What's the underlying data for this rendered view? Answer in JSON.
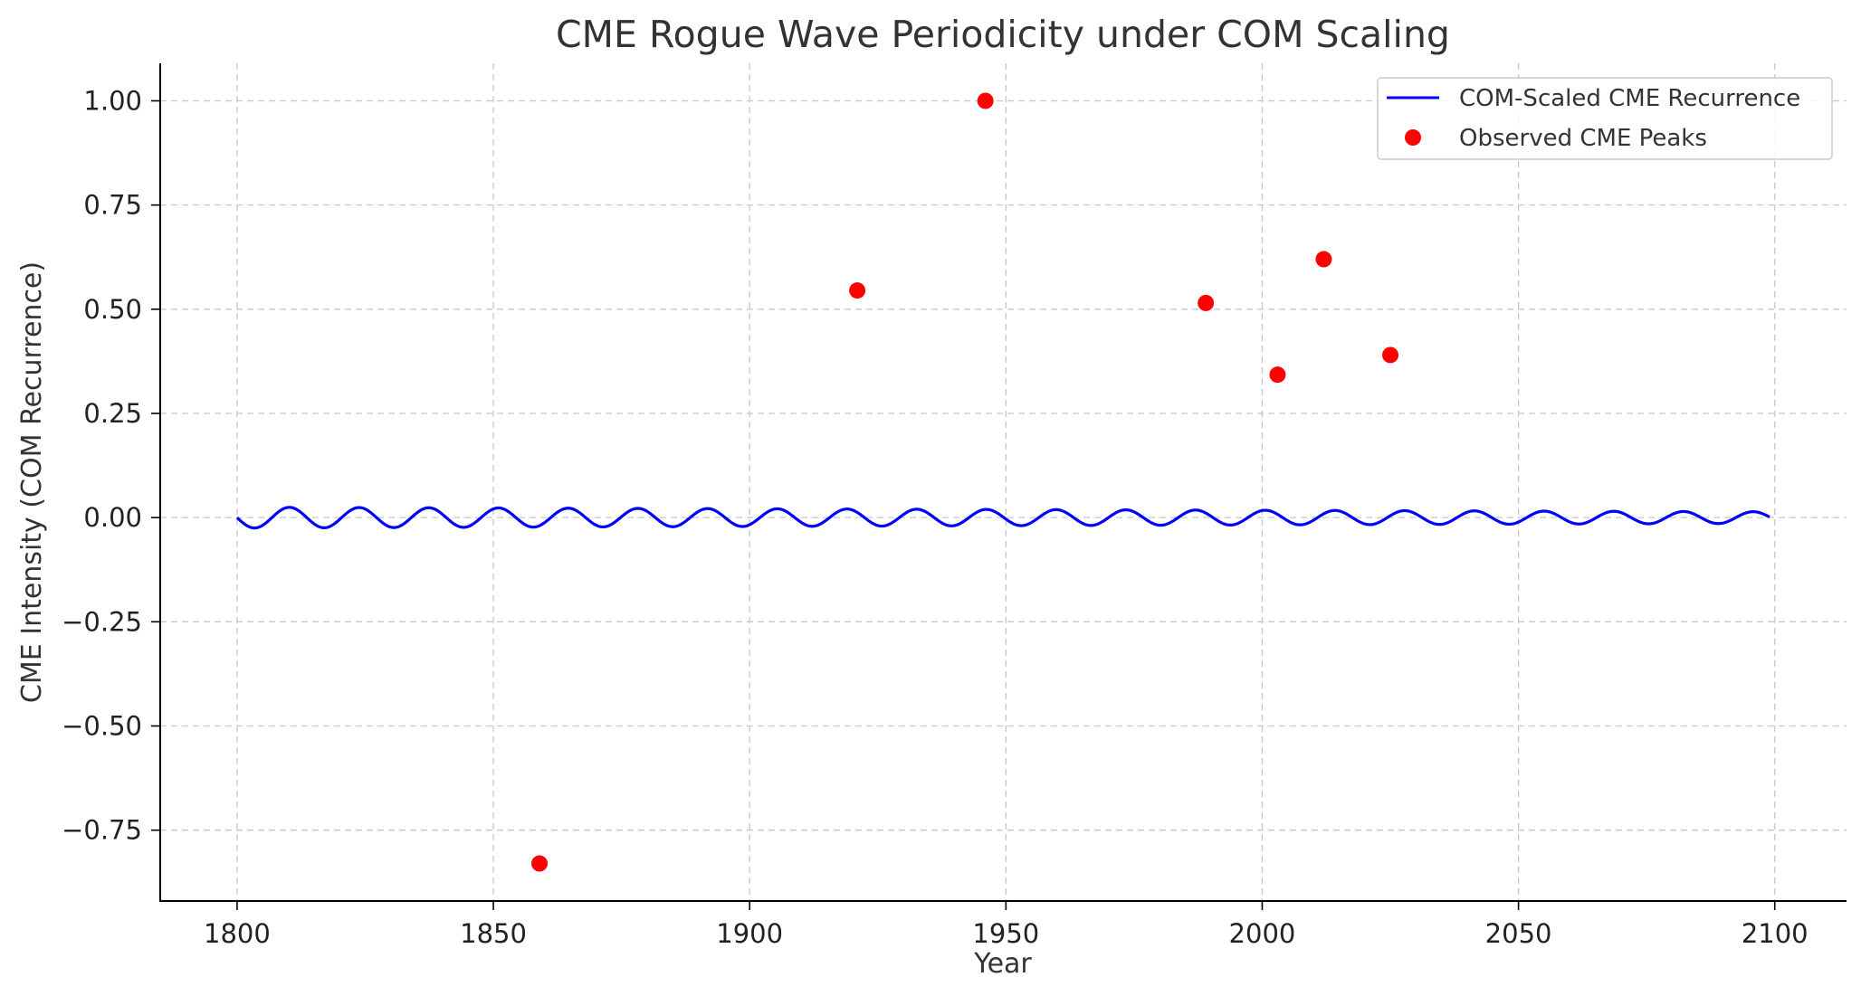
{
  "chart_data": {
    "type": "line",
    "title": "CME Rogue Wave Periodicity under COM Scaling",
    "xlabel": "Year",
    "ylabel": "CME Intensity (COM Recurrence)",
    "xlim": [
      1785,
      2114
    ],
    "ylim": [
      -0.92,
      1.09
    ],
    "x_ticks": [
      1800,
      1850,
      1900,
      1950,
      2000,
      2050,
      2100
    ],
    "x_tick_labels": [
      "1800",
      "1850",
      "1900",
      "1950",
      "2000",
      "2050",
      "2100"
    ],
    "y_ticks": [
      1.0,
      0.75,
      0.5,
      0.25,
      0.0,
      -0.25,
      -0.5,
      -0.75
    ],
    "y_tick_labels": [
      "1.00",
      "0.75",
      "0.50",
      "0.25",
      "0.00",
      "−0.25",
      "−0.50",
      "−0.75"
    ],
    "grid": true,
    "legend_position": "top-right",
    "series": [
      {
        "name": "COM-Scaled CME Recurrence",
        "kind": "line",
        "color": "#0000ff",
        "x_range": [
          1800,
          2099
        ],
        "amplitude_start": 0.025,
        "amplitude_end": 0.014,
        "period_years": 13.6
      },
      {
        "name": "Observed CME Peaks",
        "kind": "scatter",
        "color": "#ff0000",
        "points": [
          {
            "x": 1859,
            "y": -0.83
          },
          {
            "x": 1921,
            "y": 0.545
          },
          {
            "x": 1946,
            "y": 1.0
          },
          {
            "x": 1989,
            "y": 0.515
          },
          {
            "x": 2003,
            "y": 0.343
          },
          {
            "x": 2012,
            "y": 0.62
          },
          {
            "x": 2025,
            "y": 0.39
          }
        ]
      }
    ]
  }
}
